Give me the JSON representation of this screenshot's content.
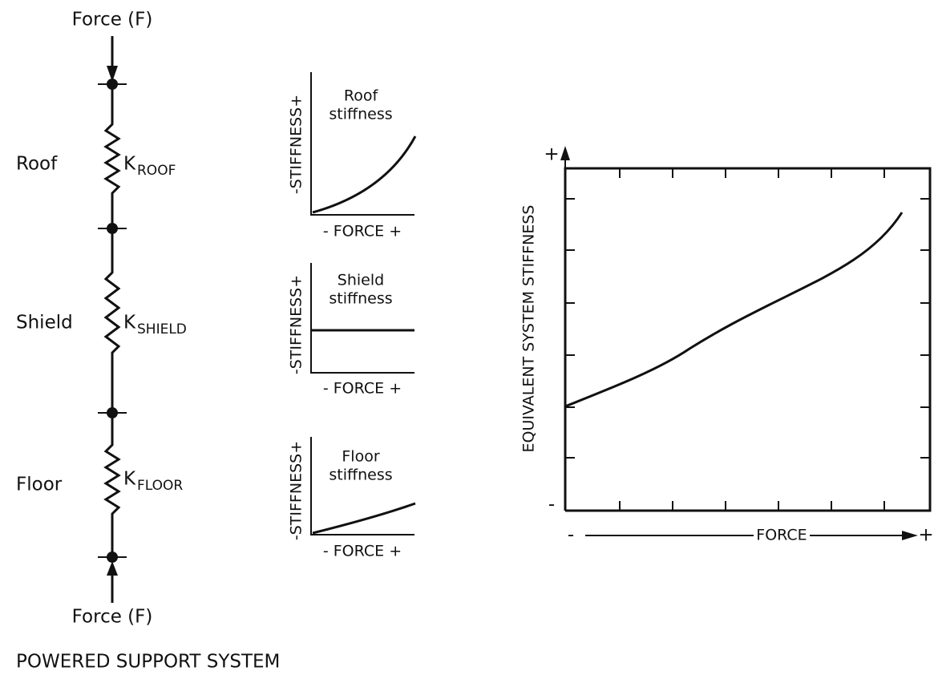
{
  "column": {
    "top_force": "Force (F)",
    "bottom_force": "Force (F)",
    "springs": [
      {
        "name": "Roof",
        "symbol": "K",
        "subscript": "ROOF"
      },
      {
        "name": "Shield",
        "symbol": "K",
        "subscript": "SHIELD"
      },
      {
        "name": "Floor",
        "symbol": "K",
        "subscript": "FLOOR"
      }
    ],
    "caption": "POWERED SUPPORT SYSTEM"
  },
  "mini_charts": [
    {
      "title": [
        "Roof",
        "stiffness"
      ],
      "y_label": "-STIFFNESS+",
      "x_label": "- FORCE +"
    },
    {
      "title": [
        "Shield",
        "stiffness"
      ],
      "y_label": "-STIFFNESS+",
      "x_label": "- FORCE +"
    },
    {
      "title": [
        "Floor",
        "stiffness"
      ],
      "y_label": "-STIFFNESS+",
      "x_label": "- FORCE +"
    }
  ],
  "main_chart": {
    "y_label": "EQUIVALENT SYSTEM STIFFNESS",
    "y_plus": "+",
    "y_minus": "-",
    "x_label": "FORCE",
    "x_plus": "+",
    "x_minus": "-"
  }
}
